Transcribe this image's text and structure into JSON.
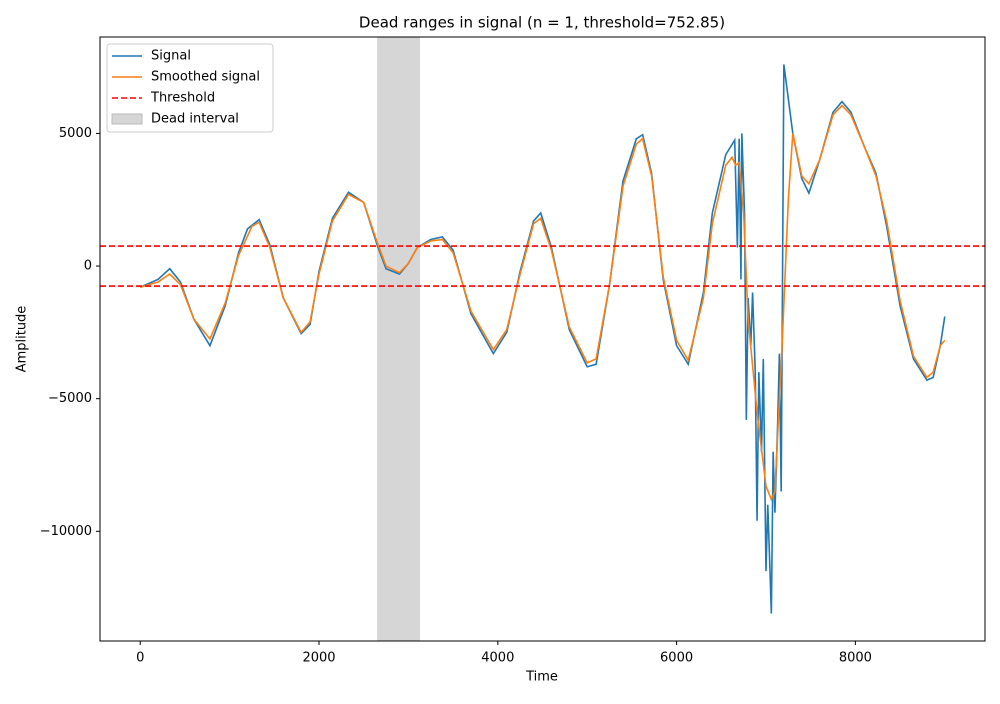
{
  "chart_data": {
    "type": "line",
    "title": "Dead ranges in signal (n = 1, threshold=752.85)",
    "xlabel": "Time",
    "ylabel": "Amplitude",
    "xlim": [
      -450,
      9450
    ],
    "ylim": [
      -14135,
      8635
    ],
    "xticks": [
      0,
      2000,
      4000,
      6000,
      8000
    ],
    "yticks": [
      {
        "value": -10000,
        "label": "−10000"
      },
      {
        "value": -5000,
        "label": "−5000"
      },
      0,
      5000
    ],
    "grid": false,
    "legend": "upper left",
    "series": [
      {
        "name": "Signal",
        "color": "#1f77b4",
        "x": [
          0,
          200,
          330,
          450,
          600,
          780,
          950,
          1100,
          1200,
          1330,
          1450,
          1600,
          1800,
          1900,
          2000,
          2150,
          2330,
          2500,
          2650,
          2750,
          2900,
          3000,
          3100,
          3250,
          3380,
          3500,
          3700,
          3950,
          4100,
          4250,
          4400,
          4480,
          4600,
          4800,
          5000,
          5100,
          5250,
          5400,
          5550,
          5620,
          5720,
          5850,
          6000,
          6130,
          6300,
          6400,
          6550,
          6650,
          6680,
          6700,
          6720,
          6730,
          6760,
          6780,
          6800,
          6830,
          6850,
          6880,
          6900,
          6920,
          6950,
          6970,
          7000,
          7020,
          7040,
          7060,
          7080,
          7100,
          7130,
          7150,
          7170,
          7200,
          7300,
          7400,
          7480,
          7600,
          7750,
          7850,
          7950,
          8100,
          8230,
          8350,
          8500,
          8650,
          8800,
          8870,
          8950,
          9000
        ],
        "values": [
          -800,
          -500,
          -100,
          -600,
          -2000,
          -3000,
          -1500,
          500,
          1400,
          1750,
          800,
          -1200,
          -2550,
          -2200,
          -200,
          1800,
          2780,
          2400,
          800,
          -100,
          -300,
          100,
          700,
          1000,
          1100,
          600,
          -1800,
          -3300,
          -2500,
          -200,
          1700,
          2000,
          700,
          -2400,
          -3800,
          -3700,
          -700,
          3200,
          4800,
          4950,
          3500,
          -500,
          -3000,
          -3700,
          -1000,
          2000,
          4200,
          4750,
          700,
          4800,
          -500,
          5000,
          2000,
          -5800,
          -1200,
          -3000,
          -1000,
          -4000,
          -9600,
          -4000,
          -7000,
          -3500,
          -11500,
          -9000,
          -11000,
          -13100,
          -7000,
          -9300,
          -6000,
          -3300,
          -8500,
          7600,
          5000,
          3300,
          2750,
          4000,
          5800,
          6200,
          5800,
          4500,
          3500,
          1500,
          -1500,
          -3500,
          -4300,
          -4200,
          -3000,
          -1900
        ]
      },
      {
        "name": "Smoothed signal",
        "color": "#ff7f0e",
        "x": [
          0,
          200,
          330,
          450,
          600,
          780,
          950,
          1100,
          1250,
          1330,
          1450,
          1600,
          1800,
          1900,
          2000,
          2150,
          2330,
          2500,
          2650,
          2750,
          2900,
          3000,
          3100,
          3250,
          3380,
          3500,
          3700,
          3950,
          4100,
          4250,
          4400,
          4480,
          4600,
          4800,
          5000,
          5100,
          5250,
          5400,
          5550,
          5620,
          5720,
          5850,
          6000,
          6130,
          6300,
          6400,
          6550,
          6620,
          6660,
          6700,
          6750,
          6800,
          6900,
          7000,
          7060,
          7100,
          7180,
          7250,
          7300,
          7400,
          7480,
          7600,
          7750,
          7850,
          7950,
          8100,
          8230,
          8350,
          8500,
          8650,
          8800,
          8870,
          8950,
          9000
        ],
        "values": [
          -800,
          -600,
          -300,
          -700,
          -2000,
          -2750,
          -1400,
          400,
          1500,
          1650,
          700,
          -1200,
          -2500,
          -2100,
          -300,
          1700,
          2700,
          2400,
          900,
          0,
          -250,
          100,
          700,
          950,
          1000,
          500,
          -1700,
          -3150,
          -2400,
          -300,
          1600,
          1800,
          600,
          -2300,
          -3650,
          -3500,
          -700,
          3000,
          4600,
          4800,
          3400,
          -400,
          -2800,
          -3550,
          -1200,
          1600,
          3800,
          4100,
          3800,
          3900,
          2000,
          -2000,
          -5500,
          -8300,
          -8800,
          -8500,
          -3000,
          2500,
          5000,
          3400,
          3100,
          4000,
          5700,
          6050,
          5700,
          4500,
          3400,
          1700,
          -1300,
          -3400,
          -4200,
          -4000,
          -3000,
          -2800
        ]
      }
    ],
    "threshold": {
      "name": "Threshold",
      "color": "#ff0000",
      "values": [
        752.85,
        -752.85
      ]
    },
    "dead_interval": {
      "name": "Dead interval",
      "color": "#d6d6d6",
      "range": [
        2650,
        3130
      ]
    }
  }
}
